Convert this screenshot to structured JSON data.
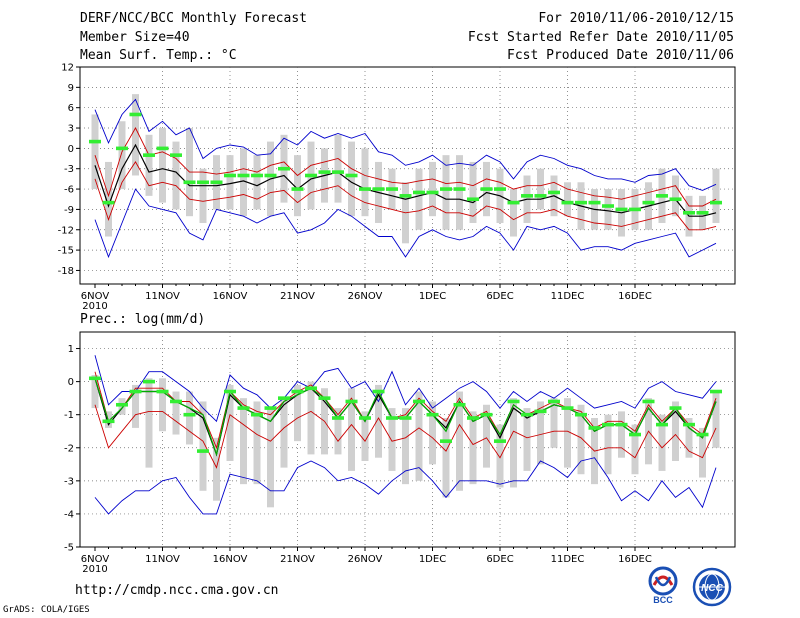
{
  "header": {
    "title": "DERF/NCC/BCC Monthly Forecast",
    "member_size": "Member Size=40",
    "var_top": "Mean Surf. Temp.: °C",
    "period": "For 2010/11/06-2010/12/15",
    "fcst_start": "Fcst Started Refer Date 2010/11/05",
    "fcst_produced": "Fcst Produced Date 2010/11/06"
  },
  "footer": {
    "url": "http://cmdp.ncc.cma.gov.cn",
    "grads": "GrADS: COLA/IGES",
    "logo_bcc": "BCC",
    "logo_ncc": "NCC"
  },
  "colors": {
    "envelope": "#0000cc",
    "spread": "#cc0000",
    "mean": "#000000",
    "bars": "#d0d0d0",
    "markers": "#33ee33",
    "grid": "#666666"
  },
  "chart_data": [
    {
      "type": "line",
      "title": "Mean Surf. Temp.: °C",
      "x_tick_labels": [
        "6NOV",
        "11NOV",
        "16NOV",
        "21NOV",
        "26NOV",
        "1DEC",
        "6DEC",
        "11DEC",
        "16DEC"
      ],
      "x_year_label": "2010",
      "ylim": [
        -20,
        12
      ],
      "y_ticks": [
        12,
        9,
        6,
        3,
        0,
        -3,
        -6,
        -9,
        -12,
        -15,
        -18
      ],
      "grid": true,
      "series": [
        {
          "name": "max",
          "color": "#0000cc",
          "values": [
            5.7,
            0.8,
            5.0,
            7.2,
            2.5,
            4.0,
            2.0,
            3.0,
            -1.5,
            0.0,
            0.5,
            0.2,
            -1.0,
            -0.8,
            1.5,
            0.5,
            2.5,
            1.5,
            2.2,
            1.5,
            2.2,
            -0.5,
            -1.0,
            -2.5,
            -2.0,
            -1.0,
            -2.5,
            -2.2,
            -2.5,
            -1.0,
            -2.0,
            -4.5,
            -2.0,
            -1.0,
            -1.5,
            -2.5,
            -3.0,
            -4.0,
            -4.5,
            -4.5,
            -5.0,
            -4.0,
            -3.8,
            -3.0,
            -5.5,
            -6.2,
            -5.3
          ]
        },
        {
          "name": "mean+sd",
          "color": "#cc0000",
          "values": [
            -1.0,
            -7.0,
            -0.5,
            3.0,
            -1.0,
            -0.5,
            -1.5,
            -3.5,
            -3.5,
            -3.8,
            -3.5,
            -3.0,
            -3.5,
            -2.5,
            -2.0,
            -4.0,
            -2.5,
            -2.0,
            -1.5,
            -3.0,
            -4.0,
            -4.5,
            -5.0,
            -5.2,
            -4.8,
            -4.5,
            -5.2,
            -5.0,
            -5.5,
            -4.5,
            -5.0,
            -6.0,
            -5.5,
            -5.5,
            -5.0,
            -6.0,
            -6.5,
            -7.0,
            -7.2,
            -7.5,
            -7.0,
            -6.5,
            -6.0,
            -5.5,
            -8.5,
            -8.5,
            -7.5
          ]
        },
        {
          "name": "mean",
          "color": "#000000",
          "values": [
            -2.5,
            -8.5,
            -3.0,
            0.5,
            -3.5,
            -3.0,
            -3.5,
            -5.5,
            -5.5,
            -5.5,
            -5.2,
            -4.8,
            -5.5,
            -4.5,
            -4.0,
            -6.0,
            -4.5,
            -4.0,
            -3.5,
            -5.0,
            -6.0,
            -6.5,
            -7.0,
            -7.5,
            -7.0,
            -6.5,
            -7.5,
            -7.5,
            -8.0,
            -6.5,
            -7.0,
            -8.0,
            -7.5,
            -7.5,
            -7.0,
            -8.0,
            -8.5,
            -9.0,
            -9.2,
            -9.5,
            -9.0,
            -8.5,
            -8.0,
            -7.5,
            -10.0,
            -10.0,
            -9.5
          ]
        },
        {
          "name": "mean-sd",
          "color": "#cc0000",
          "values": [
            -4.5,
            -10.5,
            -5.0,
            -2.0,
            -5.5,
            -5.0,
            -5.5,
            -7.5,
            -7.8,
            -7.5,
            -7.2,
            -6.8,
            -7.5,
            -6.5,
            -6.2,
            -8.0,
            -6.5,
            -6.0,
            -5.5,
            -7.0,
            -8.0,
            -8.5,
            -9.0,
            -9.5,
            -9.2,
            -8.5,
            -9.5,
            -9.5,
            -10.0,
            -8.5,
            -9.0,
            -10.5,
            -9.5,
            -9.5,
            -9.0,
            -10.0,
            -10.5,
            -11.0,
            -11.2,
            -11.5,
            -11.0,
            -10.5,
            -10.0,
            -9.5,
            -12.0,
            -12.0,
            -11.5
          ]
        },
        {
          "name": "min",
          "color": "#0000cc",
          "values": [
            -10.5,
            -16.0,
            -11.0,
            -6.0,
            -8.5,
            -9.0,
            -9.5,
            -12.5,
            -13.5,
            -9.0,
            -9.5,
            -10.0,
            -11.0,
            -10.0,
            -9.5,
            -12.5,
            -12.0,
            -11.0,
            -9.0,
            -10.0,
            -11.5,
            -13.0,
            -13.0,
            -16.0,
            -13.0,
            -12.0,
            -13.0,
            -13.5,
            -13.0,
            -11.5,
            -12.5,
            -15.0,
            -11.5,
            -12.0,
            -11.5,
            -12.5,
            -15.0,
            -14.5,
            -14.5,
            -15.0,
            -14.0,
            -13.5,
            -13.0,
            -12.5,
            -16.0,
            -15.0,
            -14.0
          ]
        }
      ],
      "spread_bars": [
        [
          5.0,
          -6.0
        ],
        [
          -2.0,
          -13.0
        ],
        [
          4.0,
          -6.0
        ],
        [
          8.0,
          -4.0
        ],
        [
          2.0,
          -7.0
        ],
        [
          3.0,
          -8.0
        ],
        [
          1.0,
          -9.0
        ],
        [
          3.0,
          -10.0
        ],
        [
          -3.0,
          -11.0
        ],
        [
          -1.0,
          -9.0
        ],
        [
          -1.0,
          -9.0
        ],
        [
          0.0,
          -10.0
        ],
        [
          -1.0,
          -9.0
        ],
        [
          1.0,
          -10.0
        ],
        [
          2.0,
          -8.0
        ],
        [
          -1.0,
          -10.0
        ],
        [
          1.0,
          -9.0
        ],
        [
          0.0,
          -8.0
        ],
        [
          2.0,
          -8.0
        ],
        [
          1.0,
          -10.0
        ],
        [
          0.0,
          -10.0
        ],
        [
          -2.0,
          -11.0
        ],
        [
          -3.0,
          -9.0
        ],
        [
          -5.0,
          -14.0
        ],
        [
          -3.0,
          -12.0
        ],
        [
          -2.0,
          -10.0
        ],
        [
          -1.0,
          -12.0
        ],
        [
          -1.0,
          -12.0
        ],
        [
          -2.0,
          -11.0
        ],
        [
          -2.0,
          -10.0
        ],
        [
          -3.0,
          -11.0
        ],
        [
          -6.0,
          -13.0
        ],
        [
          -4.0,
          -11.0
        ],
        [
          -3.0,
          -9.0
        ],
        [
          -4.0,
          -10.0
        ],
        [
          -5.0,
          -10.0
        ],
        [
          -5.0,
          -12.0
        ],
        [
          -6.0,
          -12.0
        ],
        [
          -6.0,
          -12.0
        ],
        [
          -6.0,
          -13.0
        ],
        [
          -6.0,
          -12.0
        ],
        [
          -5.0,
          -12.0
        ],
        [
          -3.0,
          -11.0
        ],
        [
          -4.0,
          -10.0
        ],
        [
          -7.0,
          -13.0
        ],
        [
          -7.0,
          -12.0
        ],
        [
          -3.0,
          -11.0
        ]
      ],
      "green_markers": [
        1.0,
        -8.0,
        0.0,
        5.0,
        -1.0,
        0.0,
        -1.0,
        -5.0,
        -5.0,
        -5.0,
        -4.0,
        -4.0,
        -4.0,
        -4.0,
        -3.0,
        -6.0,
        -4.0,
        -3.5,
        -3.5,
        -4.0,
        -6.0,
        -6.0,
        -6.0,
        -7.0,
        -6.5,
        -6.5,
        -6.0,
        -6.0,
        -7.5,
        -6.0,
        -6.0,
        -8.0,
        -7.0,
        -7.0,
        -6.5,
        -8.0,
        -8.0,
        -8.0,
        -8.5,
        -9.0,
        -9.0,
        -8.0,
        -7.0,
        -7.5,
        -9.5,
        -9.5,
        -8.0
      ]
    },
    {
      "type": "line",
      "title": "Prec.: log(mm/d)",
      "x_tick_labels": [
        "6NOV",
        "11NOV",
        "16NOV",
        "21NOV",
        "26NOV",
        "1DEC",
        "6DEC",
        "11DEC",
        "16DEC"
      ],
      "x_year_label": "2010",
      "ylim": [
        -5,
        1.5
      ],
      "y_ticks": [
        1,
        0,
        -1,
        -2,
        -3,
        -4,
        -5
      ],
      "grid": true,
      "series": [
        {
          "name": "max",
          "color": "#0000cc",
          "values": [
            0.8,
            -0.7,
            -0.3,
            -0.3,
            0.3,
            0.3,
            0.0,
            -0.3,
            -0.8,
            -1.2,
            0.2,
            -0.2,
            -0.4,
            -0.8,
            -0.5,
            0.0,
            -0.2,
            0.3,
            0.4,
            -0.2,
            0.0,
            -0.6,
            0.3,
            -0.7,
            -0.2,
            -0.8,
            -0.5,
            -0.2,
            0.0,
            -0.3,
            -0.8,
            -0.3,
            -0.6,
            -0.3,
            -0.5,
            -0.2,
            -0.5,
            -0.8,
            -0.7,
            -0.6,
            -0.8,
            -0.2,
            0.0,
            -0.3,
            -0.4,
            -0.5,
            0.0
          ]
        },
        {
          "name": "mean+sd",
          "color": "#cc0000",
          "values": [
            0.3,
            -1.2,
            -0.8,
            -0.2,
            -0.2,
            -0.2,
            -0.6,
            -0.6,
            -1.0,
            -2.0,
            -0.3,
            -0.7,
            -0.9,
            -1.0,
            -0.6,
            -0.3,
            -0.1,
            -0.5,
            -1.0,
            -0.5,
            -1.2,
            -0.3,
            -1.1,
            -1.0,
            -0.5,
            -0.9,
            -1.2,
            -0.5,
            -1.1,
            -0.9,
            -1.6,
            -0.7,
            -1.0,
            -0.8,
            -0.6,
            -0.8,
            -0.9,
            -1.4,
            -1.2,
            -1.2,
            -1.5,
            -0.7,
            -1.2,
            -0.8,
            -1.3,
            -1.6,
            -0.5
          ]
        },
        {
          "name": "mean",
          "color": "#000000",
          "values": [
            0.1,
            -1.3,
            -0.8,
            -0.3,
            -0.3,
            -0.3,
            -0.6,
            -0.8,
            -1.1,
            -2.2,
            -0.4,
            -0.8,
            -1.0,
            -1.2,
            -0.7,
            -0.4,
            -0.2,
            -0.6,
            -1.1,
            -0.6,
            -1.2,
            -0.4,
            -1.1,
            -1.1,
            -0.6,
            -1.0,
            -1.4,
            -0.6,
            -1.2,
            -1.0,
            -1.7,
            -0.8,
            -1.1,
            -0.9,
            -0.7,
            -0.8,
            -1.0,
            -1.5,
            -1.3,
            -1.3,
            -1.6,
            -0.8,
            -1.3,
            -0.9,
            -1.4,
            -1.7,
            -0.6
          ]
        },
        {
          "name": "mean-sd",
          "color": "#cc0000",
          "values": [
            -0.7,
            -2.0,
            -1.5,
            -1.0,
            -0.9,
            -0.9,
            -1.2,
            -1.5,
            -1.8,
            -2.6,
            -1.0,
            -1.3,
            -1.6,
            -1.8,
            -1.4,
            -1.1,
            -0.9,
            -1.2,
            -1.8,
            -1.3,
            -1.8,
            -1.1,
            -1.8,
            -1.7,
            -1.4,
            -1.7,
            -2.1,
            -1.3,
            -1.9,
            -1.7,
            -2.3,
            -1.5,
            -1.7,
            -1.6,
            -1.5,
            -1.5,
            -1.7,
            -2.1,
            -2.0,
            -2.0,
            -2.3,
            -1.5,
            -2.0,
            -1.6,
            -2.1,
            -2.3,
            -1.4
          ]
        },
        {
          "name": "min",
          "color": "#0000cc",
          "values": [
            -3.5,
            -4.0,
            -3.6,
            -3.3,
            -3.3,
            -3.0,
            -2.9,
            -3.5,
            -4.0,
            -4.0,
            -2.8,
            -2.9,
            -3.0,
            -3.3,
            -3.3,
            -2.6,
            -2.4,
            -2.6,
            -3.0,
            -2.9,
            -3.1,
            -3.4,
            -3.0,
            -2.7,
            -2.6,
            -3.0,
            -3.5,
            -3.0,
            -3.0,
            -3.0,
            -3.1,
            -3.0,
            -3.0,
            -2.4,
            -2.6,
            -2.9,
            -2.4,
            -2.3,
            -2.9,
            -3.6,
            -3.3,
            -3.6,
            -3.0,
            -3.5,
            -3.2,
            -3.8,
            -2.6
          ]
        },
        {
          "name": "ensemble",
          "color": "#00aa00",
          "values": [
            0.1,
            -1.2,
            -0.8,
            -0.3,
            -0.3,
            -0.3,
            -0.6,
            -0.8,
            -1.0,
            -2.2,
            -0.3,
            -0.8,
            -1.0,
            -1.2,
            -0.6,
            -0.4,
            -0.2,
            -0.5,
            -1.1,
            -0.6,
            -1.2,
            -0.3,
            -1.1,
            -1.1,
            -0.6,
            -1.0,
            -1.5,
            -0.6,
            -1.2,
            -1.0,
            -1.6,
            -0.7,
            -1.0,
            -0.9,
            -0.7,
            -0.8,
            -1.0,
            -1.5,
            -1.3,
            -1.3,
            -1.6,
            -0.8,
            -1.3,
            -0.8,
            -1.4,
            -1.7,
            -0.6
          ]
        }
      ],
      "spread_bars": [
        [
          0.2,
          -0.8
        ],
        [
          -0.9,
          -1.4
        ],
        [
          -0.5,
          -1.0
        ],
        [
          -0.1,
          -1.4
        ],
        [
          0.1,
          -2.6
        ],
        [
          0.1,
          -1.5
        ],
        [
          -0.3,
          -1.6
        ],
        [
          -0.3,
          -1.9
        ],
        [
          -0.6,
          -3.3
        ],
        [
          -1.7,
          -3.6
        ],
        [
          -0.1,
          -2.4
        ],
        [
          -0.5,
          -3.1
        ],
        [
          -0.6,
          -3.1
        ],
        [
          -0.8,
          -3.8
        ],
        [
          -0.5,
          -2.6
        ],
        [
          -0.1,
          -1.8
        ],
        [
          0.0,
          -2.2
        ],
        [
          -0.2,
          -2.2
        ],
        [
          -0.8,
          -2.2
        ],
        [
          -0.2,
          -2.7
        ],
        [
          -0.9,
          -2.4
        ],
        [
          -0.1,
          -2.3
        ],
        [
          -0.8,
          -2.7
        ],
        [
          -0.8,
          -3.1
        ],
        [
          -0.3,
          -3.0
        ],
        [
          -0.6,
          -2.5
        ],
        [
          -1.1,
          -3.5
        ],
        [
          -0.3,
          -3.3
        ],
        [
          -0.9,
          -3.1
        ],
        [
          -0.7,
          -2.6
        ],
        [
          -1.3,
          -3.2
        ],
        [
          -0.5,
          -3.2
        ],
        [
          -0.8,
          -2.7
        ],
        [
          -0.6,
          -2.5
        ],
        [
          -0.5,
          -2.0
        ],
        [
          -0.5,
          -2.6
        ],
        [
          -0.7,
          -2.8
        ],
        [
          -1.1,
          -3.1
        ],
        [
          -1.0,
          -2.8
        ],
        [
          -0.9,
          -2.3
        ],
        [
          -1.3,
          -2.8
        ],
        [
          -0.5,
          -2.5
        ],
        [
          -1.0,
          -2.7
        ],
        [
          -0.6,
          -2.4
        ],
        [
          -1.1,
          -2.3
        ],
        [
          -1.4,
          -2.9
        ],
        [
          -0.3,
          -2.0
        ]
      ],
      "green_markers": [
        0.1,
        -1.2,
        -0.7,
        -0.3,
        0.0,
        -0.3,
        -0.6,
        -1.0,
        -2.1,
        null,
        -0.3,
        -0.8,
        -1.0,
        -0.8,
        -0.5,
        -0.3,
        -0.2,
        -0.5,
        -1.1,
        -0.6,
        -1.1,
        -0.3,
        -1.1,
        -1.1,
        -0.6,
        -1.0,
        -1.8,
        -0.7,
        -1.1,
        -1.0,
        -1.8,
        -0.6,
        -1.0,
        -0.9,
        -0.6,
        -0.8,
        -1.0,
        -1.4,
        -1.3,
        -1.3,
        -1.6,
        -0.6,
        -1.3,
        -0.8,
        -1.3,
        -1.6,
        -0.3
      ]
    }
  ]
}
